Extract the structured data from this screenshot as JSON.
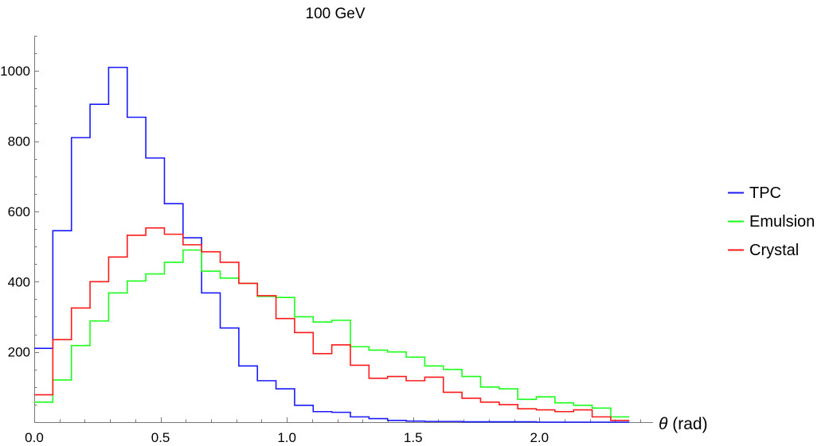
{
  "chart_data": {
    "type": "histogram-line",
    "title": "100 GeV",
    "xlabel_symbol": "θ",
    "xlabel_unit": " (rad)",
    "ylabel": "",
    "xlim": [
      0,
      2.45
    ],
    "ylim": [
      0,
      1100
    ],
    "x_ticks": [
      0.0,
      0.5,
      1.0,
      1.5,
      2.0
    ],
    "x_tick_labels": [
      "0.0",
      "0.5",
      "1.0",
      "1.5",
      "2.0"
    ],
    "y_ticks": [
      200,
      400,
      600,
      800,
      1000
    ],
    "y_tick_labels": [
      "200",
      "400",
      "600",
      "800",
      "1000"
    ],
    "bin_edges": [
      0.0,
      0.0736,
      0.1473,
      0.2209,
      0.2945,
      0.3682,
      0.4418,
      0.5154,
      0.5891,
      0.6627,
      0.7363,
      0.81,
      0.8836,
      0.9572,
      1.0309,
      1.1045,
      1.1781,
      1.2518,
      1.3254,
      1.399,
      1.4727,
      1.5463,
      1.6199,
      1.6936,
      1.7672,
      1.8408,
      1.9145,
      1.9881,
      2.0617,
      2.1354,
      2.209,
      2.2826,
      2.3562
    ],
    "legend_position": "right",
    "series": [
      {
        "name": "TPC",
        "color": "#1a1aff",
        "values": [
          210,
          545,
          810,
          905,
          1010,
          868,
          752,
          622,
          525,
          368,
          268,
          160,
          118,
          95,
          48,
          30,
          28,
          15,
          10,
          5,
          3,
          2,
          2,
          1,
          1,
          1,
          1,
          0,
          0,
          0,
          0,
          0
        ]
      },
      {
        "name": "Emulsion",
        "color": "#1aff1a",
        "values": [
          57,
          120,
          218,
          288,
          368,
          402,
          422,
          455,
          490,
          430,
          410,
          395,
          358,
          355,
          300,
          285,
          290,
          215,
          205,
          200,
          185,
          160,
          150,
          130,
          100,
          95,
          65,
          72,
          55,
          48,
          40,
          15
        ]
      },
      {
        "name": "Crystal",
        "color": "#ff1a1a",
        "values": [
          78,
          235,
          325,
          400,
          470,
          532,
          553,
          535,
          505,
          485,
          455,
          395,
          360,
          295,
          255,
          195,
          220,
          162,
          125,
          130,
          118,
          128,
          85,
          68,
          57,
          50,
          38,
          35,
          30,
          35,
          15,
          5
        ]
      }
    ]
  }
}
